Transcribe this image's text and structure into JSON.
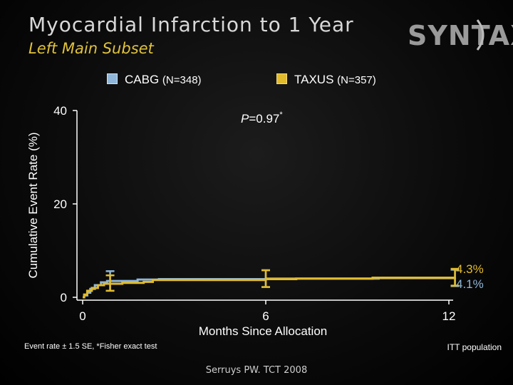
{
  "header": {
    "title": "Myocardial Infarction to 1 Year",
    "subtitle": "Left Main Subset",
    "logo_text": "SYNTAX"
  },
  "legend": [
    {
      "label": "CABG",
      "n_label": "(N=348)",
      "color": "#8fb6d8"
    },
    {
      "label": "TAXUS",
      "n_label": "(N=357)",
      "color": "#e2bb2c"
    }
  ],
  "footnotes": {
    "left": "Event rate ± 1.5 SE, *Fisher exact test",
    "right": "ITT population",
    "citation": "Serruys PW. TCT 2008"
  },
  "chart_data": {
    "type": "line",
    "title": "",
    "xlabel": "Months Since Allocation",
    "ylabel": "Cumulative Event Rate (%)",
    "xlim": [
      0,
      12
    ],
    "ylim": [
      0,
      40
    ],
    "x_ticks": [
      0,
      6,
      12
    ],
    "y_ticks": [
      0,
      20,
      40
    ],
    "annotation": {
      "prefix": "P",
      "text": "=0.97",
      "sup": "*"
    },
    "series": [
      {
        "name": "CABG",
        "color": "#8fb6d8",
        "x": [
          0,
          0.05,
          0.15,
          0.25,
          0.4,
          0.6,
          0.8,
          1.8,
          2.5,
          6,
          9.7,
          12.2
        ],
        "y": [
          0,
          0.4,
          1.0,
          1.8,
          2.6,
          3.2,
          3.5,
          3.8,
          3.9,
          4.0,
          4.1,
          4.1
        ],
        "error_bars": [
          {
            "x": 0.9,
            "y": 3.5,
            "low": 1.4,
            "high": 5.6
          },
          {
            "x": 6,
            "y": 4.0,
            "low": 2.2,
            "high": 5.8
          },
          {
            "x": 12.2,
            "y": 4.1,
            "low": 2.4,
            "high": 5.9
          }
        ],
        "end_label": "4.1%"
      },
      {
        "name": "TAXUS",
        "color": "#e2bb2c",
        "x": [
          0,
          0.05,
          0.15,
          0.3,
          0.5,
          0.7,
          1.3,
          2.0,
          2.3,
          6,
          7,
          9.5,
          12.2
        ],
        "y": [
          0,
          0.6,
          1.4,
          2.0,
          2.6,
          2.9,
          3.1,
          3.3,
          3.7,
          3.9,
          4.0,
          4.2,
          4.3
        ],
        "error_bars": [
          {
            "x": 0.9,
            "y": 2.9,
            "low": 1.4,
            "high": 4.7
          },
          {
            "x": 6,
            "y": 3.9,
            "low": 2.2,
            "high": 5.8
          },
          {
            "x": 12.2,
            "y": 4.3,
            "low": 2.5,
            "high": 6.1
          }
        ],
        "end_label": "4.3%"
      }
    ]
  }
}
